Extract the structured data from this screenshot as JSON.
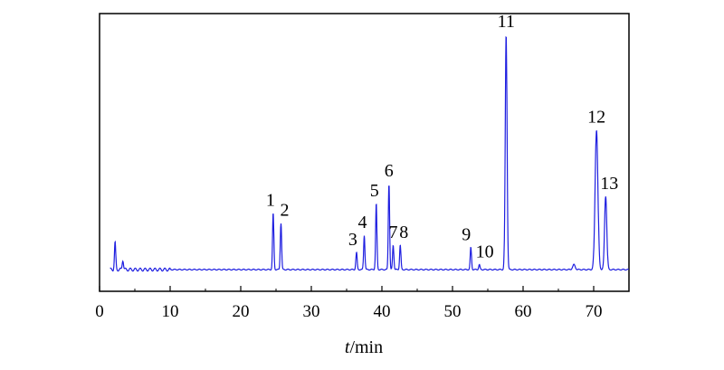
{
  "chart_data": {
    "type": "line",
    "title": "",
    "xlabel_italic": "t",
    "xlabel_unit": "/min",
    "ylabel": "",
    "xlim": [
      0,
      75
    ],
    "x_ticks": [
      0,
      10,
      20,
      30,
      40,
      50,
      60,
      70
    ],
    "line_color": "#1f1fe0",
    "baseline": 0.04,
    "peaks": [
      {
        "label": "",
        "x": 2.2,
        "y": 0.15
      },
      {
        "label": "",
        "x": 3.3,
        "y": 0.08
      },
      {
        "label": "1",
        "x": 24.6,
        "y": 0.27
      },
      {
        "label": "2",
        "x": 25.7,
        "y": 0.23
      },
      {
        "label": "3",
        "x": 36.4,
        "y": 0.11
      },
      {
        "label": "4",
        "x": 37.5,
        "y": 0.18
      },
      {
        "label": "5",
        "x": 39.2,
        "y": 0.31
      },
      {
        "label": "6",
        "x": 41.0,
        "y": 0.39
      },
      {
        "label": "7",
        "x": 41.6,
        "y": 0.14
      },
      {
        "label": "8",
        "x": 42.6,
        "y": 0.14
      },
      {
        "label": "9",
        "x": 52.6,
        "y": 0.13
      },
      {
        "label": "10",
        "x": 53.8,
        "y": 0.06
      },
      {
        "label": "11",
        "x": 57.6,
        "y": 1.0
      },
      {
        "label": "12",
        "x": 70.4,
        "y": 0.61
      },
      {
        "label": "13",
        "x": 71.7,
        "y": 0.34
      }
    ]
  }
}
